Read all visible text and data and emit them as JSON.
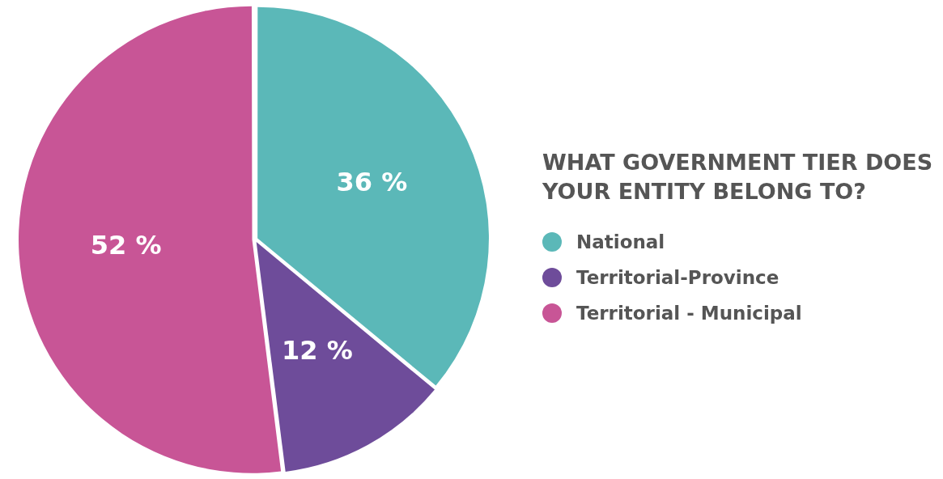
{
  "chart_data": {
    "type": "pie",
    "title": "WHAT GOVERNMENT TIER DOES YOUR ENTITY BELONG TO?",
    "categories": [
      "National",
      "Territorial-Province",
      "Territorial - Municipal"
    ],
    "values": [
      36,
      12,
      52
    ],
    "colors": [
      "#5bb8b8",
      "#6e4c9a",
      "#c85596"
    ],
    "value_labels": [
      "36 %",
      "12 %",
      "52 %"
    ],
    "legend": "right"
  }
}
